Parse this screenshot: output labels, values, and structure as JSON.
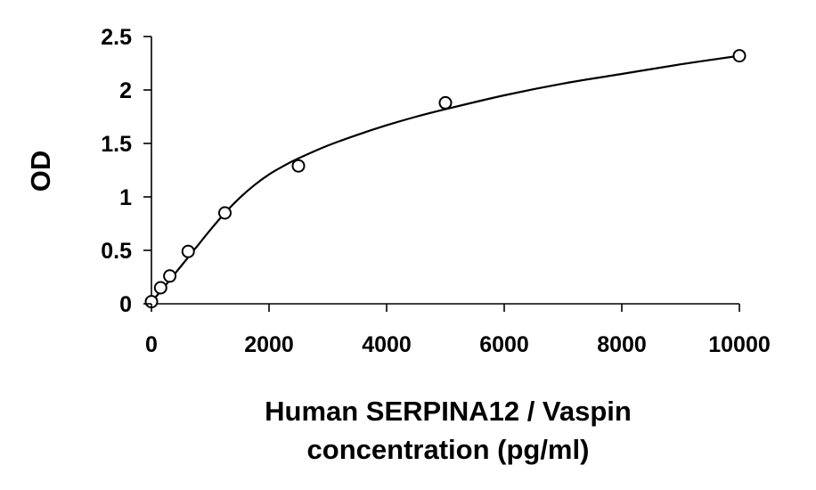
{
  "chart_data": {
    "type": "scatter",
    "title": "",
    "xlabel_lines": [
      "Human SERPINA12 / Vaspin",
      "concentration (pg/ml)"
    ],
    "ylabel": "OD",
    "xlim": [
      0,
      10000
    ],
    "ylim": [
      0,
      2.5
    ],
    "x_ticks": [
      0,
      2000,
      4000,
      6000,
      8000,
      10000
    ],
    "x_tick_labels": [
      "0",
      "2000",
      "4000",
      "6000",
      "8000",
      "10000"
    ],
    "y_ticks": [
      0,
      0.5,
      1,
      1.5,
      2,
      2.5
    ],
    "y_tick_labels": [
      "0",
      "0.5",
      "1",
      "1.5",
      "2",
      "2.5"
    ],
    "grid": false,
    "legend": "none",
    "series": [
      {
        "x": [
          0,
          156,
          312,
          625,
          1250,
          2500,
          5000,
          10000
        ],
        "y": [
          0.02,
          0.15,
          0.26,
          0.49,
          0.85,
          1.29,
          1.88,
          2.32
        ]
      }
    ],
    "fit_curve": {
      "type": "four-parameter-logistic",
      "x": [
        0,
        100,
        250,
        500,
        750,
        1000,
        1250,
        1500,
        1750,
        2000,
        2250,
        2500,
        3000,
        3500,
        4000,
        4500,
        5000,
        6000,
        7000,
        8000,
        9000,
        10000
      ],
      "y": [
        0.02,
        0.08,
        0.18,
        0.35,
        0.52,
        0.69,
        0.85,
        0.99,
        1.11,
        1.21,
        1.29,
        1.36,
        1.48,
        1.58,
        1.67,
        1.75,
        1.82,
        1.95,
        2.06,
        2.15,
        2.24,
        2.32
      ]
    },
    "marker": "open-circle",
    "colors": {
      "marks": "#000000",
      "background": "#ffffff"
    }
  }
}
